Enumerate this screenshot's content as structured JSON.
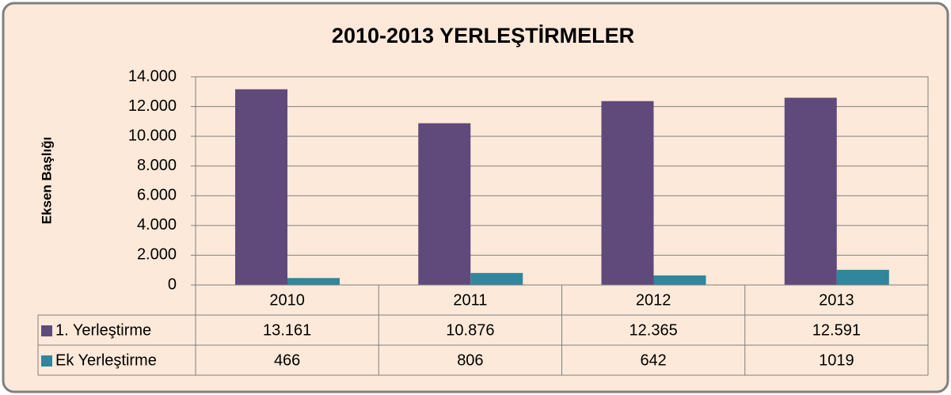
{
  "chart_data": {
    "type": "bar",
    "title": "2010-2013 YERLEŞTİRMELER",
    "y_label": "Eksen Başlığı",
    "categories": [
      "2010",
      "2011",
      "2012",
      "2013"
    ],
    "series": [
      {
        "name": "1. Yerleştirme",
        "color": "#604a7b",
        "values": [
          13161,
          10876,
          12365,
          12591
        ],
        "value_labels": [
          "13.161",
          "10.876",
          "12.365",
          "12.591"
        ]
      },
      {
        "name": "Ek Yerleştirme",
        "color": "#31859c",
        "values": [
          466,
          806,
          642,
          1019
        ],
        "value_labels": [
          "466",
          "806",
          "642",
          "1019"
        ]
      }
    ],
    "ylim": [
      0,
      14000
    ],
    "yticks": [
      0,
      {
        "value": 2000,
        "label": "2.000"
      },
      {
        "value": 4000,
        "label": "4.000"
      },
      {
        "value": 6000,
        "label": "6.000"
      },
      {
        "value": 8000,
        "label": "8.000"
      },
      {
        "value": 10000,
        "label": "10.000"
      },
      {
        "value": 12000,
        "label": "12.000"
      },
      {
        "value": 14000,
        "label": "14.000"
      }
    ],
    "grid": true,
    "legend": "table"
  }
}
